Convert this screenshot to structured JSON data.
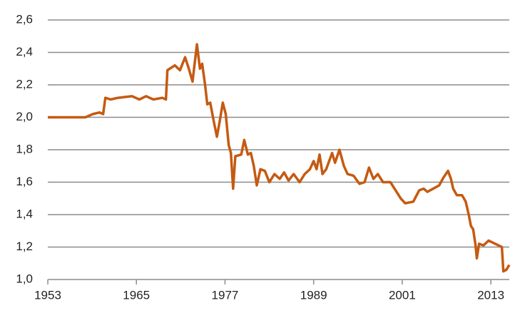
{
  "chart_data": {
    "type": "line",
    "x": [
      1953,
      1956.2,
      1958.1,
      1959.1,
      1960.0,
      1960.5,
      1960.8,
      1961.5,
      1962.5,
      1964.4,
      1965.4,
      1966.3,
      1967.3,
      1968.5,
      1969.0,
      1969.2,
      1970.2,
      1970.9,
      1971.6,
      1972.1,
      1972.6,
      1973.2,
      1973.6,
      1973.9,
      1974.3,
      1974.6,
      1975.0,
      1975.5,
      1975.9,
      1976.3,
      1976.7,
      1977.1,
      1977.5,
      1977.8,
      1978.1,
      1978.4,
      1979.2,
      1979.6,
      1980.1,
      1980.5,
      1980.9,
      1981.3,
      1981.8,
      1982.4,
      1983.0,
      1983.7,
      1984.4,
      1985.0,
      1985.6,
      1986.3,
      1987.1,
      1987.8,
      1988.5,
      1989.0,
      1989.4,
      1989.8,
      1990.2,
      1990.7,
      1991.5,
      1991.9,
      1992.5,
      1993.1,
      1993.6,
      1994.4,
      1995.2,
      1995.9,
      1996.5,
      1997.1,
      1997.7,
      1998.4,
      1999.4,
      2000.1,
      2000.8,
      2001.4,
      2002.5,
      2003.3,
      2003.9,
      2004.4,
      2005.2,
      2006.0,
      2006.6,
      2007.2,
      2007.6,
      2007.9,
      2008.4,
      2009.1,
      2009.6,
      2010.0,
      2010.3,
      2010.6,
      2010.9,
      2011.1,
      2011.4,
      2012.0,
      2012.7,
      2013.6,
      2014.5,
      2014.7,
      2015.1,
      2015.5
    ],
    "series": [
      {
        "color": "#c55a11",
        "values": [
          2.0,
          2.0,
          2.0,
          2.02,
          2.03,
          2.02,
          2.12,
          2.11,
          2.12,
          2.13,
          2.11,
          2.13,
          2.11,
          2.12,
          2.11,
          2.29,
          2.32,
          2.29,
          2.37,
          2.3,
          2.22,
          2.45,
          2.3,
          2.33,
          2.2,
          2.08,
          2.09,
          1.97,
          1.88,
          1.98,
          2.09,
          2.02,
          1.83,
          1.78,
          1.56,
          1.76,
          1.77,
          1.86,
          1.77,
          1.78,
          1.7,
          1.58,
          1.68,
          1.67,
          1.6,
          1.65,
          1.62,
          1.66,
          1.61,
          1.65,
          1.6,
          1.65,
          1.68,
          1.73,
          1.68,
          1.77,
          1.65,
          1.68,
          1.78,
          1.72,
          1.8,
          1.7,
          1.65,
          1.64,
          1.59,
          1.6,
          1.69,
          1.62,
          1.65,
          1.6,
          1.6,
          1.55,
          1.5,
          1.47,
          1.48,
          1.55,
          1.56,
          1.54,
          1.56,
          1.58,
          1.63,
          1.67,
          1.62,
          1.56,
          1.52,
          1.52,
          1.48,
          1.4,
          1.33,
          1.31,
          1.22,
          1.13,
          1.22,
          1.21,
          1.24,
          1.22,
          1.2,
          1.05,
          1.06,
          1.09
        ]
      }
    ],
    "xlim": [
      1953,
      2015.5
    ],
    "xticks": [
      1953,
      1965,
      1977,
      1989,
      2001,
      2013
    ],
    "ylim": [
      1.0,
      2.6
    ],
    "yticks": [
      {
        "value": 1.0,
        "label": "1,0"
      },
      {
        "value": 1.2,
        "label": "1,2"
      },
      {
        "value": 1.4,
        "label": "1,4"
      },
      {
        "value": 1.6,
        "label": "1,6"
      },
      {
        "value": 1.8,
        "label": "1,8"
      },
      {
        "value": 2.0,
        "label": "2,0"
      },
      {
        "value": 2.2,
        "label": "2,2"
      },
      {
        "value": 2.4,
        "label": "2,4"
      },
      {
        "value": 2.6,
        "label": "2,6"
      }
    ],
    "grid": true
  }
}
